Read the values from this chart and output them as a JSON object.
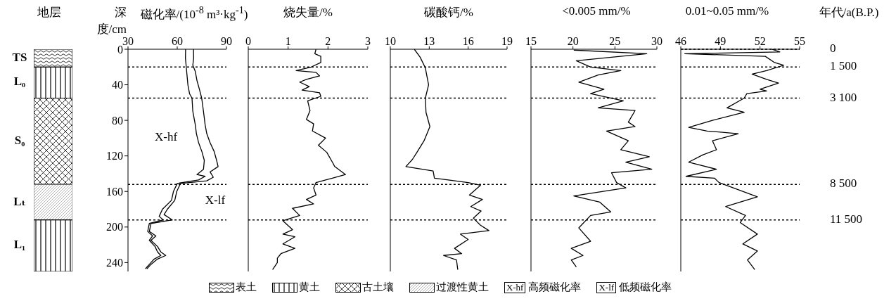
{
  "chart_data": [
    {
      "type": "bar",
      "title": "地层",
      "stacked": true,
      "categories": [
        null
      ],
      "ylim": [
        250,
        0
      ],
      "tick_labels": false,
      "legend": "bottom",
      "series": [
        {
          "name": "表土",
          "color": "#000000",
          "values": [
            20
          ]
        },
        {
          "name": "黄土",
          "color": "#000000",
          "values": [
            35
          ]
        },
        {
          "name": "古土壤",
          "color": "#000000",
          "values": [
            97
          ]
        },
        {
          "name": "过渡性黄土",
          "color": "#808080",
          "values": [
            40
          ]
        },
        {
          "color": "#000000",
          "values": [
            58
          ]
        }
      ],
      "annotations": [
        "TS",
        "L₀",
        "S₀",
        "Lₜ",
        "L₁"
      ]
    },
    {
      "type": "line",
      "title": "磁化率/(10$^{-8}$ m³·kg$^{-1}$)",
      "ylabel": "深度/cm",
      "xlim": [
        30,
        90
      ],
      "xticks": [
        30,
        60,
        90
      ],
      "ylim": [
        250,
        0
      ],
      "yticks": [
        0,
        40,
        80,
        120,
        160,
        200,
        240
      ],
      "legend": "bottom",
      "series": [
        {
          "name": "X-hf 高频磁化率",
          "color": "#000000",
          "x": [
            65.1,
            65,
            65.5,
            66,
            66.5,
            67.5,
            69,
            69.5,
            71,
            71.7,
            73,
            75,
            76.5,
            76,
            72,
            77,
            73,
            60,
            57.7,
            56.5,
            51,
            49,
            51.5,
            43,
            42,
            45,
            43,
            46.5,
            48,
            50,
            46,
            43,
            40.6
          ],
          "values": [
            0,
            10,
            20,
            30,
            40,
            50,
            55,
            70,
            85,
            95,
            105,
            115,
            125,
            135,
            141,
            143,
            147,
            151,
            160,
            170,
            180,
            188,
            192,
            196,
            205,
            210,
            215,
            222,
            228,
            232,
            236,
            242,
            247
          ]
        },
        {
          "name": "X-lf 低频磁化率",
          "color": "#000000",
          "x": [
            69.9,
            70,
            69.5,
            71,
            72,
            73.5,
            74.9,
            76,
            77,
            78,
            80,
            82.5,
            84,
            84.9,
            80,
            82,
            78,
            62,
            59.7,
            58.5,
            54,
            52,
            57,
            44,
            43,
            47,
            44,
            48,
            50,
            53,
            48,
            44,
            41.5
          ],
          "values": [
            0,
            10,
            18,
            25,
            35,
            45,
            55,
            70,
            85,
            95,
            105,
            115,
            125,
            132,
            138,
            144,
            148,
            151,
            160,
            170,
            180,
            186,
            192,
            196,
            205,
            210,
            215,
            222,
            228,
            232,
            236,
            242,
            247
          ]
        }
      ],
      "annotations": [
        "X-hf",
        "X-lf"
      ],
      "ref_lines": [
        {
          "axis": "y",
          "value": 20,
          "label": null,
          "line_style": "dotted"
        },
        {
          "axis": "y",
          "value": 55,
          "label": null,
          "line_style": "dotted"
        },
        {
          "axis": "y",
          "value": 152,
          "label": null,
          "line_style": "dotted"
        },
        {
          "axis": "y",
          "value": 192,
          "label": null,
          "line_style": "dotted"
        }
      ]
    },
    {
      "type": "line",
      "title": "烧失量/%",
      "xlim": [
        0,
        3
      ],
      "xticks": [
        0,
        1,
        2,
        3
      ],
      "ylim": [
        250,
        0
      ],
      "yticks": [
        0,
        40,
        80,
        120,
        160,
        200,
        240
      ],
      "tick_labels": "x",
      "series": [
        {
          "color": "#000000",
          "x": [
            1.7,
            1.67,
            1.82,
            1.82,
            1.58,
            1.2,
            1.7,
            1.79,
            1.46,
            1.29,
            1.53,
            1.35,
            1.79,
            1.82,
            1.49,
            1.55,
            1.46,
            1.64,
            1.61,
            1.94,
            1.76,
            1.97,
            2.11,
            2.17,
            2.44,
            2.11,
            1.7,
            1.64,
            1.7,
            1.46,
            1.64,
            1.11,
            1.29,
            0.87,
            1.11,
            0.87,
            1.17,
            0.87,
            1.17,
            0.82,
            0.73,
            0.73,
            0.61
          ],
          "values": [
            0,
            5,
            8,
            15,
            20,
            24,
            26,
            30,
            34,
            37,
            42,
            46,
            49,
            53,
            58,
            69,
            79,
            84,
            92,
            100,
            108,
            116,
            127,
            132,
            141,
            145,
            150,
            156,
            164,
            169,
            174,
            179,
            187,
            193,
            203,
            208,
            211,
            219,
            224,
            230,
            235,
            240,
            248
          ]
        }
      ],
      "ref_lines": [
        {
          "axis": "y",
          "value": 20,
          "label": null,
          "line_style": "dotted"
        },
        {
          "axis": "y",
          "value": 55,
          "label": null,
          "line_style": "dotted"
        },
        {
          "axis": "y",
          "value": 152,
          "label": null,
          "line_style": "dotted"
        },
        {
          "axis": "y",
          "value": 192,
          "label": null,
          "line_style": "dotted"
        }
      ]
    },
    {
      "type": "line",
      "title": "碳酸钙/%",
      "xlim": [
        10,
        19
      ],
      "xticks": [
        10,
        13,
        16,
        19
      ],
      "ylim": [
        250,
        0
      ],
      "yticks": [
        0,
        40,
        80,
        120,
        160,
        200,
        240
      ],
      "tick_labels": "x",
      "series": [
        {
          "color": "#000000",
          "x": [
            11.85,
            12.3,
            12.7,
            12.95,
            12.7,
            12.75,
            13.05,
            12.6,
            12.05,
            11.7,
            11.2,
            13.3,
            13.4,
            16.0,
            16.95,
            16.1,
            17.1,
            16.2,
            17.0,
            16.4,
            16.95,
            17.6,
            15.4,
            16.0,
            14.95,
            15.5,
            14.1,
            15.1,
            15.2
          ],
          "values": [
            0,
            9,
            21,
            40,
            55,
            71,
            87,
            103,
            116,
            124,
            132,
            137,
            145,
            150,
            153,
            164,
            169,
            177,
            182,
            190,
            198,
            204,
            208,
            214,
            224,
            230,
            232,
            237,
            248
          ]
        }
      ],
      "ref_lines": [
        {
          "axis": "y",
          "value": 20,
          "label": null,
          "line_style": "dotted"
        },
        {
          "axis": "y",
          "value": 55,
          "label": null,
          "line_style": "dotted"
        },
        {
          "axis": "y",
          "value": 152,
          "label": null,
          "line_style": "dotted"
        },
        {
          "axis": "y",
          "value": 192,
          "label": null,
          "line_style": "dotted"
        }
      ]
    },
    {
      "type": "line",
      "title": "<0.005 mm/%",
      "xlim": [
        15,
        30
      ],
      "xticks": [
        15,
        20,
        25,
        30
      ],
      "ylim": [
        250,
        0
      ],
      "yticks": [
        0,
        40,
        80,
        120,
        160,
        200,
        240
      ],
      "tick_labels": "x",
      "series": [
        {
          "color": "#000000",
          "x": [
            20.1,
            28.8,
            20.4,
            22.1,
            25.7,
            23.0,
            20.7,
            23.7,
            22.1,
            26.0,
            23.0,
            27.4,
            26.6,
            27.4,
            24.0,
            26.6,
            25.7,
            29.1,
            26.3,
            29.4,
            24.6,
            25.2,
            26.3,
            20.1,
            23.2,
            24.5,
            22.1,
            20.7,
            22.1,
            19.8,
            21.2,
            19.8,
            20.4
          ],
          "values": [
            1,
            5,
            13,
            20,
            24,
            29,
            37,
            45,
            50,
            58,
            66,
            69,
            82,
            87,
            92,
            103,
            113,
            121,
            127,
            135,
            139,
            150,
            156,
            165,
            172,
            183,
            187,
            201,
            216,
            224,
            232,
            237,
            245
          ]
        }
      ],
      "ref_lines": [
        {
          "axis": "y",
          "value": 20,
          "label": null,
          "line_style": "dotted"
        },
        {
          "axis": "y",
          "value": 55,
          "label": null,
          "line_style": "dotted"
        },
        {
          "axis": "y",
          "value": 152,
          "label": null,
          "line_style": "dotted"
        },
        {
          "axis": "y",
          "value": 192,
          "label": null,
          "line_style": "dotted"
        }
      ]
    },
    {
      "type": "line",
      "title": "0.01~0.05 mm/%",
      "y2label": "年代/a(B.P.)",
      "xlim": [
        46,
        55
      ],
      "xticks": [
        46,
        49,
        52,
        55
      ],
      "ylim": [
        250,
        0
      ],
      "yticks": [
        0,
        40,
        80,
        120,
        160,
        200,
        240
      ],
      "tick_labels": "x",
      "series": [
        {
          "color": "#000000",
          "x": [
            52.9,
            53.5,
            46.3,
            52.4,
            53.1,
            53.8,
            52.5,
            51.4,
            52.5,
            53.4,
            52,
            52.5,
            51,
            50.8,
            49.5,
            50.8,
            48.4,
            46.6,
            48.0,
            50.35,
            48.4,
            48.7,
            47.65,
            46.6,
            48.7,
            46.4,
            48.55,
            48.9,
            51.8,
            49.4,
            50.9,
            50.5,
            51.8,
            50.7,
            51.8,
            51.05,
            51.6
          ],
          "values": [
            0,
            3,
            5,
            8,
            15,
            18,
            24,
            28,
            34,
            38,
            45,
            47,
            50,
            55,
            66,
            71,
            80,
            88,
            92,
            95,
            103,
            113,
            119,
            127,
            135,
            143,
            145,
            150,
            166,
            177,
            187,
            195,
            208,
            219,
            227,
            237,
            248
          ]
        }
      ],
      "annotations": [
        "0",
        "1 500",
        "3 100",
        "8 500",
        "11 500"
      ],
      "ref_lines": [
        {
          "axis": "y",
          "value": 0,
          "label": null,
          "line_style": "dotted"
        },
        {
          "axis": "y",
          "value": 20,
          "label": null,
          "line_style": "dotted"
        },
        {
          "axis": "y",
          "value": 55,
          "label": null,
          "line_style": "dotted"
        },
        {
          "axis": "y",
          "value": 152,
          "label": null,
          "line_style": "dotted"
        },
        {
          "axis": "y",
          "value": 192,
          "label": null,
          "line_style": "dotted"
        }
      ]
    }
  ]
}
